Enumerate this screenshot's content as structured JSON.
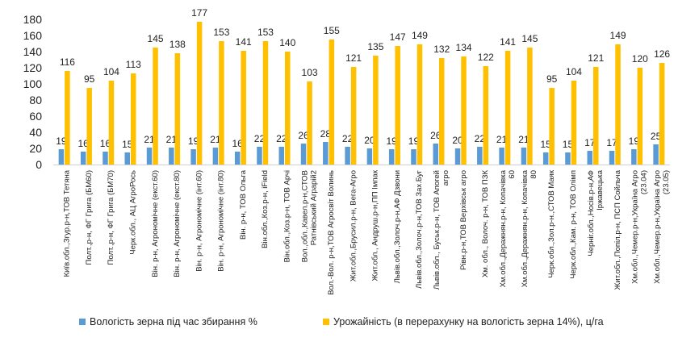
{
  "chart_data": {
    "type": "bar",
    "title": "",
    "xlabel": "",
    "ylabel": "",
    "ylim": [
      0,
      180
    ],
    "yticks": [
      0,
      20,
      40,
      60,
      80,
      100,
      120,
      140,
      160,
      180
    ],
    "grid": false,
    "legend_position": "bottom",
    "categories": [
      [
        "Київ.обл.,Згур.р-н,ТОВ Тетяна"
      ],
      [
        "Полт.,р-н, ФГ Грига (БМ60)"
      ],
      [
        "Полт.,р-н, ФГ Грига (БМ70)"
      ],
      [
        "Черк.обл., АЦ АгроРось"
      ],
      [
        "Він. р-н, Агрономічне (екст.60)"
      ],
      [
        "Він. р-н, Агрономічне (екст.80)"
      ],
      [
        "Він. р-н, Агрономічне (інт.60)"
      ],
      [
        "Він. р-н, Агрономічне (інт.80)"
      ],
      [
        "Він. р-н, ТОВ Ольга"
      ],
      [
        "Він.обл.,Коз.р-н, iField"
      ],
      [
        "Він.обл.,Коз.р-н, ТОВ Арчі"
      ],
      [
        "Вол.,обл.,Кавел.р-н,СТОВ",
        "Ратнівський Аграрій2"
      ],
      [
        "Вол.-Вол. р-н,ТОВ Агросвіт Волинь"
      ],
      [
        "Жит.обл.,Брусил.р-н, Вега-Агро"
      ],
      [
        "Жит.обл., Андруш.р-н,ПП Імпак"
      ],
      [
        "Львів.обл.,Золоч.р-н,АФ Дзвони"
      ],
      [
        "Львів.обл.,Золоч.р-н,ТОВ Зах.Буг"
      ],
      [
        "Львів.обл., Буськ.р-н, ТОВ Апогей",
        "агро"
      ],
      [
        "Рівн.р-н,ТОВ Верхівськ агро"
      ],
      [
        "Хм. обл., Волоч. р-н, ТОВ ПЗК"
      ],
      [
        "Хм.обл.,Деражнян.р-н, Копачівка",
        "60"
      ],
      [
        "Хм.обл.,Деражнян.р-н, Копачівка",
        "80"
      ],
      [
        "Черк.обл.,Зол.р-н.,СТОВ Маяк"
      ],
      [
        "Черк.обл.,Кам. р-н, ТОВ Олімп"
      ],
      [
        "Черніг.обл.,Носів.р-н,АФ",
        "Іржавецька"
      ],
      [
        "Жит.обл.,Попіл.р-н, ПСП Сойльча"
      ],
      [
        "Хм.обл.,Чемер.р-н,Україна Агро",
        "(23.04)"
      ],
      [
        "Хм.обл.,Чемер.р-н,Україна Агро",
        "(23.05)"
      ]
    ],
    "series": [
      {
        "name": "Вологість зерна під час збирання %",
        "color": "#5B9BD5",
        "values": [
          19,
          16,
          16,
          15,
          21,
          21,
          19,
          21,
          16,
          22,
          22,
          26,
          28,
          22,
          20,
          19,
          19,
          26,
          20,
          22,
          21,
          21,
          15,
          15,
          17,
          17,
          19,
          25
        ]
      },
      {
        "name": "Урожайність  (в перерахунку на вологість зерна 14%), ц/га",
        "color": "#FFC000",
        "values": [
          116,
          95,
          104,
          113,
          145,
          138,
          177,
          153,
          141,
          153,
          140,
          103,
          155,
          121,
          135,
          147,
          149,
          132,
          134,
          122,
          141,
          145,
          95,
          104,
          121,
          149,
          120,
          126
        ]
      }
    ]
  }
}
